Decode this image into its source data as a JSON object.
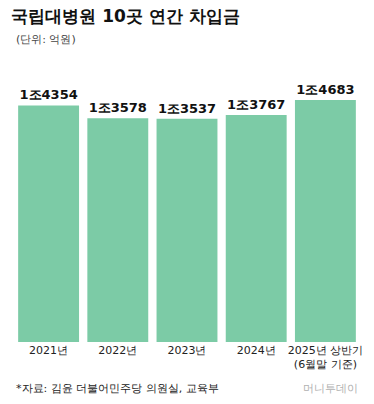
{
  "chart_data": {
    "type": "bar",
    "title": "국립대병원 10곳 연간 차입금",
    "subtitle": "(단위: 억원)",
    "categories": [
      "2021년",
      "2022년",
      "2023년",
      "2024년",
      "2025년 상반기 (6월말 기준)"
    ],
    "values": [
      14354,
      13578,
      13537,
      13767,
      14683
    ],
    "value_labels": [
      "1조4354",
      "1조3578",
      "1조3537",
      "1조3767",
      "1조4683"
    ],
    "color": "#7ccba6",
    "ylim": [
      0,
      16500
    ],
    "data_labels": true,
    "tick_labels": "x",
    "grid": false,
    "source": "*자료: 김윤 더불어민주당 의원실, 교육부",
    "credit": "머니투데이"
  }
}
